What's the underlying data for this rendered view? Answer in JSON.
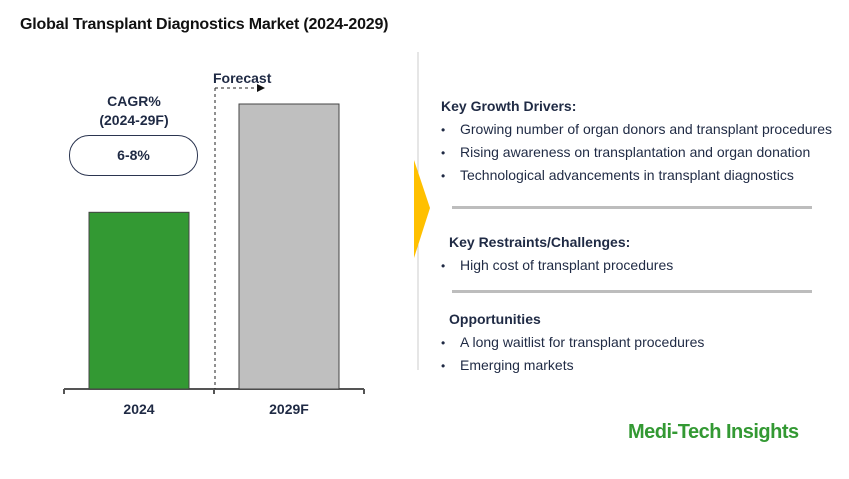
{
  "title": "Global Transplant Diagnostics Market (2024-2029)",
  "chart_data": {
    "type": "bar",
    "categories": [
      "2024",
      "2029F"
    ],
    "values": [
      0.62,
      1.0
    ],
    "value_note": "relative bar heights (no axis values shown)",
    "colors": [
      "#339933",
      "#bfbfbf"
    ],
    "title": "Global Transplant Diagnostics Market (2024-2029)",
    "xlabel": "",
    "ylabel": "",
    "forecast_label": "Forecast",
    "cagr_label": "CAGR%",
    "cagr_period": "(2024-29F)",
    "cagr_value": "6-8%"
  },
  "drivers": {
    "heading": "Key Growth Drivers:",
    "items": [
      "Growing number of organ donors and transplant procedures",
      "Rising awareness on transplantation and organ donation",
      "Technological advancements in transplant diagnostics"
    ]
  },
  "restraints": {
    "heading": "Key Restraints/Challenges:",
    "items": [
      "High cost of transplant procedures"
    ]
  },
  "opportunities": {
    "heading": "Opportunities",
    "items": [
      "A long waitlist for transplant procedures",
      "Emerging markets"
    ]
  },
  "bullet": "•",
  "logo": "Medi-Tech Insights",
  "accent_color": "#ffc000"
}
